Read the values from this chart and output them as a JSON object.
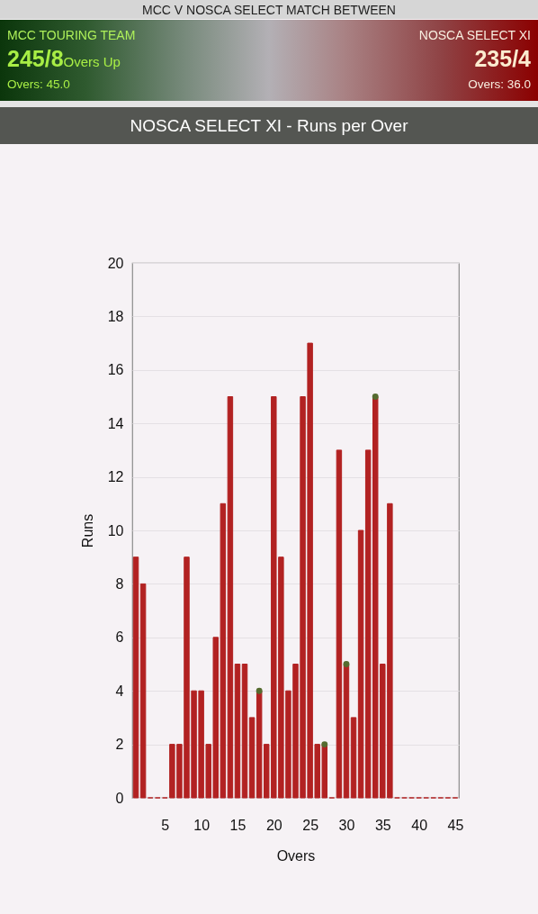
{
  "chart_data": {
    "type": "bar",
    "title": "NOSCA SELECT XI - Runs per Over",
    "xlabel": "Overs",
    "ylabel": "Runs",
    "annotations": [
      "MCC V NOSCA SELECT MATCH BETWEEN",
      "MCC TOURING TEAM",
      "245/8",
      "Overs Up",
      "Overs: 45.0",
      "NOSCA SELECT XI",
      "235/4",
      "Overs: 36.0"
    ],
    "x": [
      1,
      2,
      3,
      4,
      5,
      6,
      7,
      8,
      9,
      10,
      11,
      12,
      13,
      14,
      15,
      16,
      17,
      18,
      19,
      20,
      21,
      22,
      23,
      24,
      25,
      26,
      27,
      28,
      29,
      30,
      31,
      32,
      33,
      34,
      35,
      36,
      37,
      38,
      39,
      40,
      41,
      42,
      43,
      44,
      45
    ],
    "xlim": [
      0.5,
      45.5
    ],
    "xticks": [
      5,
      10,
      15,
      20,
      25,
      30,
      35,
      40,
      45
    ],
    "ylim": [
      0,
      20
    ],
    "yticks": [
      0,
      2,
      4,
      6,
      8,
      10,
      12,
      14,
      16,
      18,
      20
    ],
    "grid": "y",
    "series": [
      {
        "color": "#b22222",
        "values": [
          9,
          8,
          0,
          0,
          0,
          2,
          2,
          9,
          4,
          4,
          2,
          6,
          11,
          15,
          5,
          5,
          3,
          4,
          2,
          15,
          9,
          4,
          5,
          15,
          17,
          2,
          2,
          0,
          13,
          5,
          3,
          10,
          13,
          15,
          5,
          11,
          0,
          0,
          0,
          0,
          0,
          0,
          0,
          0,
          0
        ]
      },
      {
        "type": "scatter",
        "x": [
          18,
          27,
          30,
          34
        ],
        "values": [
          4,
          2,
          5,
          15
        ],
        "color": "#556b2f",
        "marker": "circle"
      }
    ]
  }
}
